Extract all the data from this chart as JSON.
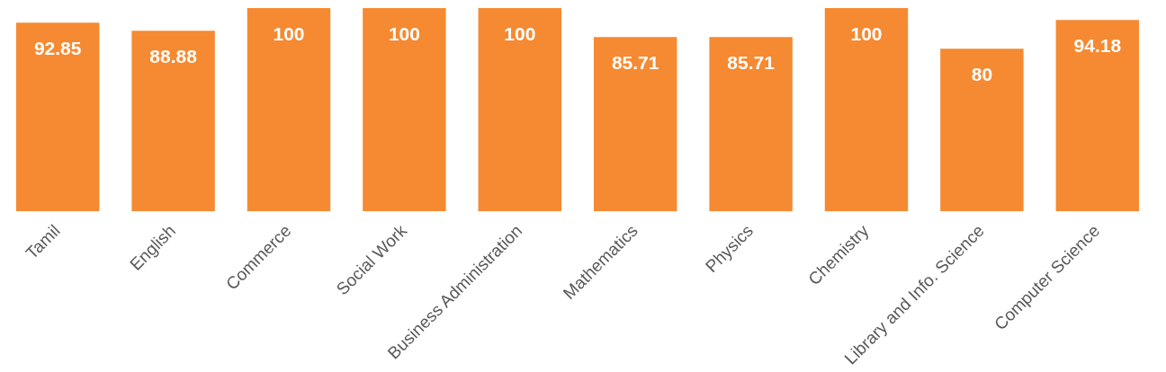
{
  "chart_data": {
    "type": "bar",
    "categories": [
      "Tamil",
      "English",
      "Commerce",
      "Social Work",
      "Business Administration",
      "Mathematics",
      "Physics",
      "Chemistry",
      "Library and Info. Science",
      "Computer Science"
    ],
    "values": [
      92.85,
      88.88,
      100,
      100,
      100,
      85.71,
      85.71,
      100,
      80,
      94.18
    ],
    "color": "#f58a32",
    "data_labels": true
  }
}
